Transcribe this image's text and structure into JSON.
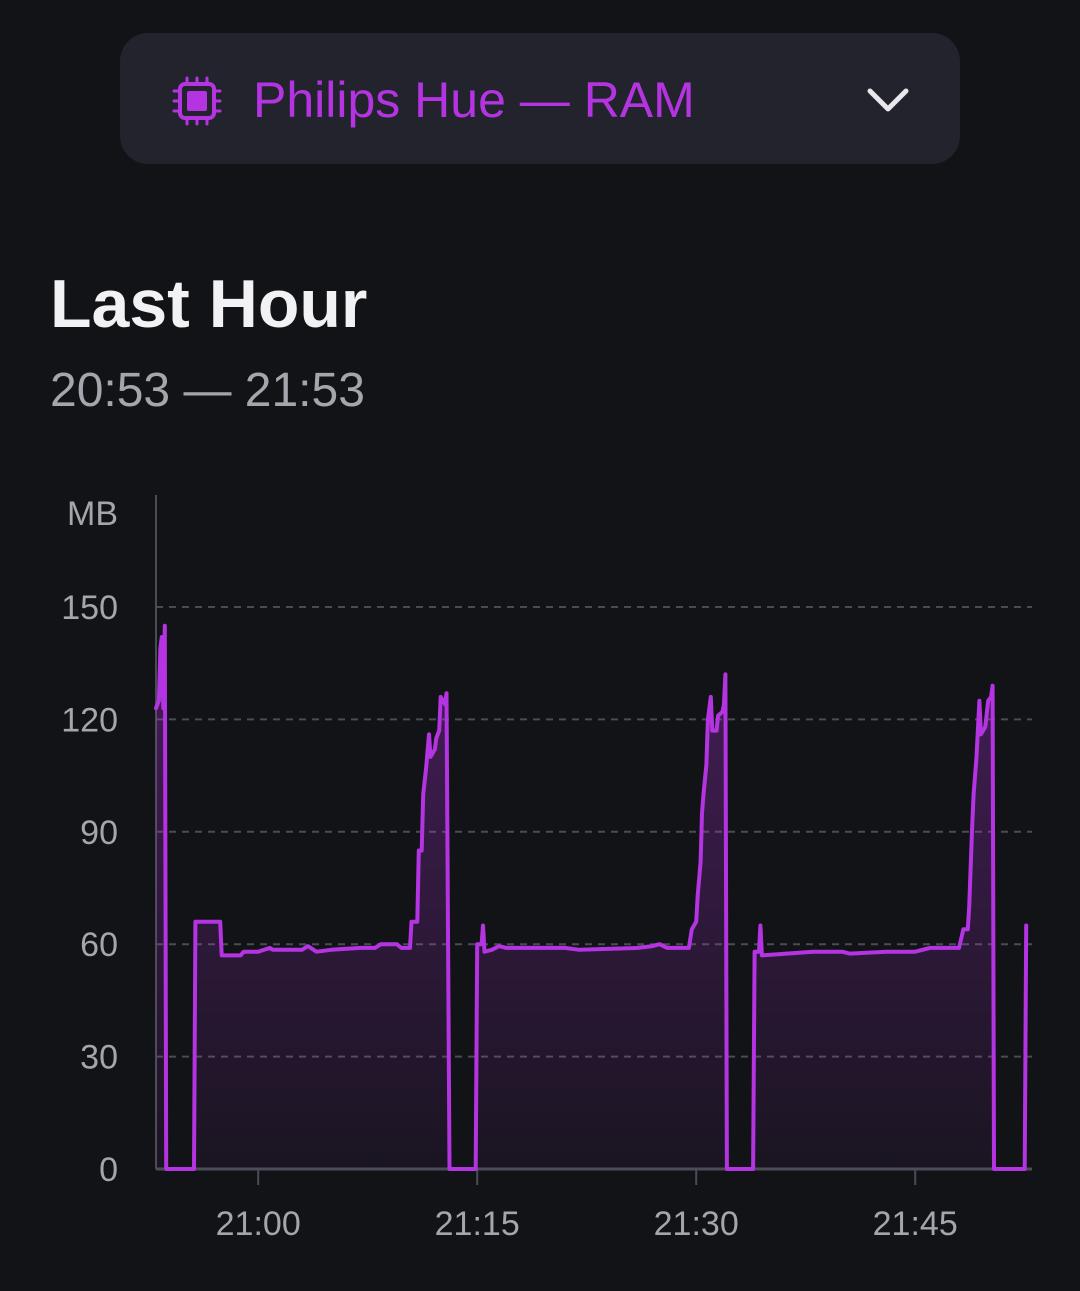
{
  "selector": {
    "label": "Philips Hue — RAM",
    "icon": "chip-icon",
    "dropdown_icon": "chevron-down-icon",
    "accent_color": "#b434e2"
  },
  "header": {
    "title": "Last Hour",
    "range": "20:53 — 21:53"
  },
  "chart_data": {
    "type": "line",
    "title": "",
    "xlabel": "",
    "ylabel": "MB",
    "xlim": [
      "20:53",
      "21:53"
    ],
    "ylim": [
      0,
      150
    ],
    "y_ticks": [
      "0",
      "30",
      "60",
      "90",
      "120",
      "150"
    ],
    "x_ticks": [
      "21:00",
      "21:15",
      "21:30",
      "21:45"
    ],
    "grid": true,
    "series_color": "#b434e2",
    "fill": true,
    "series": [
      {
        "values": [
          [
            "20:53:00",
            123
          ],
          [
            "20:53:12",
            125
          ],
          [
            "20:53:18",
            139
          ],
          [
            "20:53:24",
            142
          ],
          [
            "20:53:30",
            123
          ],
          [
            "20:53:36",
            145
          ],
          [
            "20:53:42",
            0
          ],
          [
            "20:55:36",
            0
          ],
          [
            "20:55:42",
            66
          ],
          [
            "20:57:24",
            66
          ],
          [
            "20:57:30",
            57
          ],
          [
            "20:58:48",
            57
          ],
          [
            "20:59:00",
            58
          ],
          [
            "21:00:00",
            58
          ],
          [
            "21:00:48",
            59
          ],
          [
            "21:01:00",
            58.5
          ],
          [
            "21:03:00",
            58.5
          ],
          [
            "21:03:24",
            59.5
          ],
          [
            "21:04:00",
            58
          ],
          [
            "21:05:00",
            58.5
          ],
          [
            "21:07:00",
            59
          ],
          [
            "21:08:00",
            59
          ],
          [
            "21:08:24",
            60
          ],
          [
            "21:09:30",
            60
          ],
          [
            "21:09:48",
            59
          ],
          [
            "21:10:24",
            59
          ],
          [
            "21:10:30",
            66
          ],
          [
            "21:10:54",
            66
          ],
          [
            "21:11:00",
            85
          ],
          [
            "21:11:12",
            85
          ],
          [
            "21:11:18",
            100
          ],
          [
            "21:11:30",
            107
          ],
          [
            "21:11:42",
            116
          ],
          [
            "21:11:48",
            110
          ],
          [
            "21:12:06",
            112
          ],
          [
            "21:12:12",
            115
          ],
          [
            "21:12:24",
            117
          ],
          [
            "21:12:30",
            126
          ],
          [
            "21:12:48",
            124
          ],
          [
            "21:12:54",
            127
          ],
          [
            "21:13:06",
            0
          ],
          [
            "21:14:54",
            0
          ],
          [
            "21:15:00",
            60
          ],
          [
            "21:15:18",
            60
          ],
          [
            "21:15:24",
            65
          ],
          [
            "21:15:30",
            58
          ],
          [
            "21:16:00",
            58.5
          ],
          [
            "21:16:30",
            59.5
          ],
          [
            "21:17:00",
            59
          ],
          [
            "21:21:00",
            59
          ],
          [
            "21:22:00",
            58.5
          ],
          [
            "21:26:00",
            59
          ],
          [
            "21:27:00",
            59.5
          ],
          [
            "21:27:30",
            60
          ],
          [
            "21:28:00",
            59
          ],
          [
            "21:29:30",
            59
          ],
          [
            "21:29:42",
            64
          ],
          [
            "21:30:00",
            66
          ],
          [
            "21:30:06",
            73
          ],
          [
            "21:30:18",
            82
          ],
          [
            "21:30:24",
            95
          ],
          [
            "21:30:30",
            100
          ],
          [
            "21:30:42",
            108
          ],
          [
            "21:30:48",
            120
          ],
          [
            "21:31:00",
            126
          ],
          [
            "21:31:06",
            117
          ],
          [
            "21:31:24",
            117
          ],
          [
            "21:31:30",
            121
          ],
          [
            "21:31:48",
            122
          ],
          [
            "21:31:54",
            124
          ],
          [
            "21:32:00",
            132
          ],
          [
            "21:32:06",
            0
          ],
          [
            "21:33:54",
            0
          ],
          [
            "21:34:00",
            58
          ],
          [
            "21:34:18",
            58
          ],
          [
            "21:34:24",
            65
          ],
          [
            "21:34:30",
            57
          ],
          [
            "21:38:00",
            58
          ],
          [
            "21:40:00",
            58
          ],
          [
            "21:40:30",
            57.5
          ],
          [
            "21:43:00",
            58
          ],
          [
            "21:45:00",
            58
          ],
          [
            "21:45:30",
            58.5
          ],
          [
            "21:46:00",
            59
          ],
          [
            "21:48:00",
            59
          ],
          [
            "21:48:18",
            64
          ],
          [
            "21:48:36",
            64
          ],
          [
            "21:48:42",
            70
          ],
          [
            "21:48:54",
            91
          ],
          [
            "21:49:00",
            100
          ],
          [
            "21:49:12",
            110
          ],
          [
            "21:49:24",
            125
          ],
          [
            "21:49:30",
            116
          ],
          [
            "21:49:48",
            118
          ],
          [
            "21:50:00",
            125
          ],
          [
            "21:50:12",
            126
          ],
          [
            "21:50:18",
            129
          ],
          [
            "21:50:24",
            0
          ],
          [
            "21:52:30",
            0
          ],
          [
            "21:52:36",
            65
          ]
        ]
      }
    ]
  }
}
